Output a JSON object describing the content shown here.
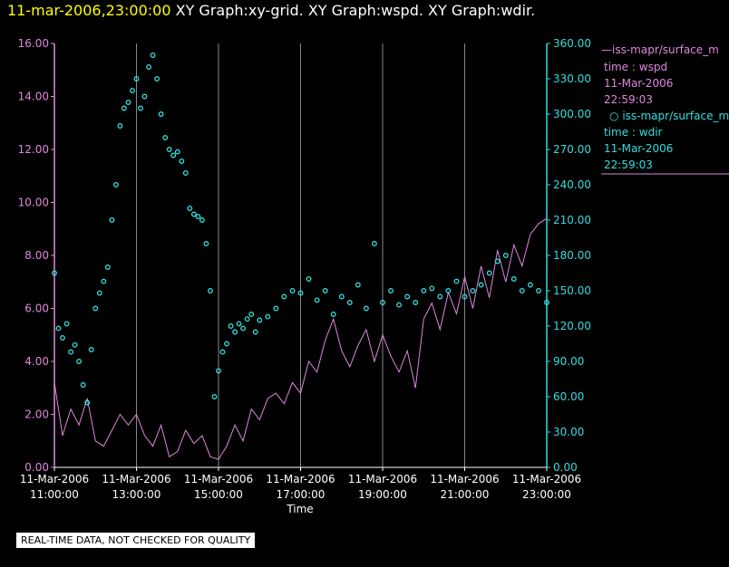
{
  "header": {
    "timestamp": "11-mar-2006,23:00:00",
    "graphs": "XY Graph:xy-grid.  XY Graph:wspd.  XY Graph:wdir."
  },
  "legend": {
    "series1": {
      "line": "iss-mapr/surface_m",
      "field": "time : wspd",
      "date": "11-Mar-2006",
      "time": "22:59:03"
    },
    "series2": {
      "line": "iss-mapr/surface_m",
      "field": "time : wdir",
      "date": "11-Mar-2006",
      "time": "22:59:03"
    }
  },
  "footer": "REAL-TIME DATA, NOT CHECKED FOR QUALITY",
  "colors": {
    "wspd": "#dd88dd",
    "wdir": "#33dddd",
    "grid": "#888888"
  },
  "chart_data": {
    "type": "line+scatter",
    "xlabel": "Time",
    "xlim": [
      11,
      23
    ],
    "x_ticks": [
      {
        "v": 11,
        "date": "11-Mar-2006",
        "time": "11:00:00"
      },
      {
        "v": 13,
        "date": "11-Mar-2006",
        "time": "13:00:00"
      },
      {
        "v": 15,
        "date": "11-Mar-2006",
        "time": "15:00:00"
      },
      {
        "v": 17,
        "date": "11-Mar-2006",
        "time": "17:00:00"
      },
      {
        "v": 19,
        "date": "11-Mar-2006",
        "time": "19:00:00"
      },
      {
        "v": 21,
        "date": "11-Mar-2006",
        "time": "21:00:00"
      },
      {
        "v": 23,
        "date": "11-Mar-2006",
        "time": "23:00:00"
      }
    ],
    "left_axis": {
      "series": "wspd",
      "ylim": [
        0,
        16
      ],
      "ticks": [
        "0.00",
        "2.00",
        "4.00",
        "6.00",
        "8.00",
        "10.00",
        "12.00",
        "14.00",
        "16.00"
      ]
    },
    "right_axis": {
      "series": "wdir",
      "ylim": [
        0,
        360
      ],
      "ticks": [
        "0.00",
        "30.00",
        "60.00",
        "90.00",
        "120.00",
        "150.00",
        "180.00",
        "210.00",
        "240.00",
        "270.00",
        "300.00",
        "330.00",
        "360.00"
      ]
    },
    "series": [
      {
        "name": "wspd",
        "style": "line",
        "axis": "left",
        "x": [
          11.0,
          11.2,
          11.4,
          11.6,
          11.8,
          12.0,
          12.2,
          12.4,
          12.6,
          12.8,
          13.0,
          13.2,
          13.4,
          13.6,
          13.8,
          14.0,
          14.2,
          14.4,
          14.6,
          14.8,
          15.0,
          15.2,
          15.4,
          15.6,
          15.8,
          16.0,
          16.2,
          16.4,
          16.6,
          16.8,
          17.0,
          17.2,
          17.4,
          17.6,
          17.8,
          18.0,
          18.2,
          18.4,
          18.6,
          18.8,
          19.0,
          19.2,
          19.4,
          19.6,
          19.8,
          20.0,
          20.2,
          20.4,
          20.6,
          20.8,
          21.0,
          21.2,
          21.4,
          21.6,
          21.8,
          22.0,
          22.2,
          22.4,
          22.6,
          22.8,
          23.0
        ],
        "y": [
          3.2,
          1.2,
          2.2,
          1.6,
          2.6,
          1.0,
          0.8,
          1.4,
          2.0,
          1.6,
          2.0,
          1.2,
          0.8,
          1.6,
          0.4,
          0.6,
          1.4,
          0.9,
          1.2,
          0.4,
          0.3,
          0.8,
          1.6,
          1.0,
          2.2,
          1.8,
          2.6,
          2.8,
          2.4,
          3.2,
          2.8,
          4.0,
          3.6,
          4.8,
          5.6,
          4.4,
          3.8,
          4.6,
          5.2,
          4.0,
          5.0,
          4.2,
          3.6,
          4.4,
          3.0,
          5.6,
          6.2,
          5.2,
          6.6,
          5.8,
          7.2,
          6.0,
          7.6,
          6.4,
          8.2,
          7.0,
          8.4,
          7.6,
          8.8,
          9.2,
          9.4
        ]
      },
      {
        "name": "wdir",
        "style": "scatter",
        "axis": "right",
        "x": [
          11.0,
          11.1,
          11.2,
          11.3,
          11.4,
          11.5,
          11.6,
          11.7,
          11.8,
          11.9,
          12.0,
          12.1,
          12.2,
          12.3,
          12.4,
          12.5,
          12.6,
          12.7,
          12.8,
          12.9,
          13.0,
          13.1,
          13.2,
          13.3,
          13.4,
          13.5,
          13.6,
          13.7,
          13.8,
          13.9,
          14.0,
          14.1,
          14.2,
          14.3,
          14.4,
          14.5,
          14.6,
          14.7,
          14.8,
          14.9,
          15.0,
          15.1,
          15.2,
          15.3,
          15.4,
          15.5,
          15.6,
          15.7,
          15.8,
          15.9,
          16.0,
          16.2,
          16.4,
          16.6,
          16.8,
          17.0,
          17.2,
          17.4,
          17.6,
          17.8,
          18.0,
          18.2,
          18.4,
          18.6,
          18.8,
          19.0,
          19.2,
          19.4,
          19.6,
          19.8,
          20.0,
          20.2,
          20.4,
          20.6,
          20.8,
          21.0,
          21.2,
          21.4,
          21.6,
          21.8,
          22.0,
          22.2,
          22.4,
          22.6,
          22.8,
          23.0
        ],
        "y": [
          165,
          118,
          110,
          122,
          98,
          104,
          90,
          70,
          55,
          100,
          135,
          148,
          158,
          170,
          210,
          240,
          290,
          305,
          310,
          320,
          330,
          305,
          315,
          340,
          350,
          330,
          300,
          280,
          270,
          265,
          268,
          260,
          250,
          220,
          215,
          213,
          210,
          190,
          150,
          60,
          82,
          98,
          105,
          120,
          115,
          122,
          118,
          126,
          130,
          115,
          125,
          128,
          135,
          145,
          150,
          148,
          160,
          142,
          150,
          130,
          145,
          140,
          155,
          135,
          190,
          140,
          150,
          138,
          145,
          140,
          150,
          152,
          145,
          150,
          158,
          145,
          150,
          155,
          165,
          175,
          180,
          160,
          150,
          155,
          150,
          140
        ]
      }
    ]
  }
}
